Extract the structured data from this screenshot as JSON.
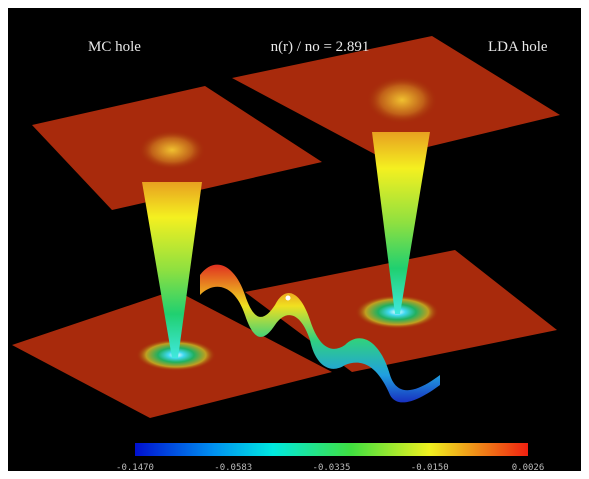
{
  "header": {
    "left_label": "MC hole",
    "center_label": "n(r) / no = 2.891",
    "right_label": "LDA hole"
  },
  "colorbar": {
    "ticks": [
      "-0.1470",
      "-0.0583",
      "-0.0335",
      "-0.0150",
      "0.0026"
    ]
  }
}
